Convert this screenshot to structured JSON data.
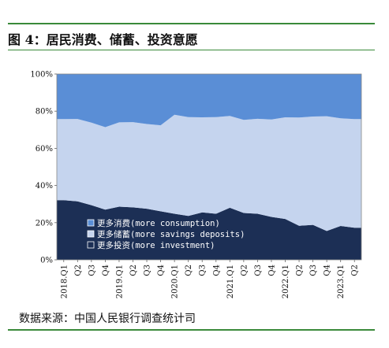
{
  "figure": {
    "title": "图 4：居民消费、储蓄、投资意愿",
    "source": "数据来源：中国人民银行调查统计司"
  },
  "chart_data": {
    "type": "area",
    "stacked": true,
    "categories": [
      "2018.Q1",
      "Q2",
      "Q3",
      "Q4",
      "2019.Q1",
      "Q2",
      "Q3",
      "Q4",
      "2020.Q1",
      "Q2",
      "Q3",
      "Q4",
      "2021.Q1",
      "Q2",
      "Q3",
      "Q4",
      "2022.Q1",
      "Q2",
      "Q3",
      "Q4",
      "2023.Q1",
      "Q2"
    ],
    "y_ticks": [
      "0%",
      "20%",
      "40%",
      "60%",
      "80%",
      "100%"
    ],
    "ylim": [
      0,
      100
    ],
    "grid": false,
    "legend_position": "bottom-left",
    "series": [
      {
        "name": "更多储蓄(more savings deposits)",
        "color": "#c5d4ee",
        "values": [
          43.6,
          44.3,
          44.4,
          44.4,
          45.4,
          45.9,
          45.6,
          46.3,
          53.3,
          53.2,
          51.2,
          52.0,
          49.4,
          50.1,
          51.1,
          52.4,
          54.7,
          58.3,
          58.3,
          61.8,
          58.0,
          58.4
        ]
      },
      {
        "name": "更多投资(more investment)",
        "color": "#1c2f55",
        "values": [
          32.1,
          31.5,
          29.4,
          27.0,
          28.6,
          28.2,
          27.5,
          26.1,
          24.8,
          23.6,
          25.5,
          24.8,
          28.0,
          25.2,
          24.8,
          23.1,
          22.0,
          18.3,
          18.8,
          15.5,
          18.2,
          17.3
        ]
      },
      {
        "name": "更多消费(more consumption)",
        "color": "#5a8ed6",
        "values": [
          24.3,
          24.2,
          26.2,
          28.6,
          26.0,
          25.9,
          26.9,
          27.6,
          21.9,
          23.2,
          23.3,
          23.2,
          22.6,
          24.7,
          24.1,
          24.5,
          23.3,
          23.4,
          22.9,
          22.7,
          23.8,
          24.3
        ]
      }
    ]
  }
}
